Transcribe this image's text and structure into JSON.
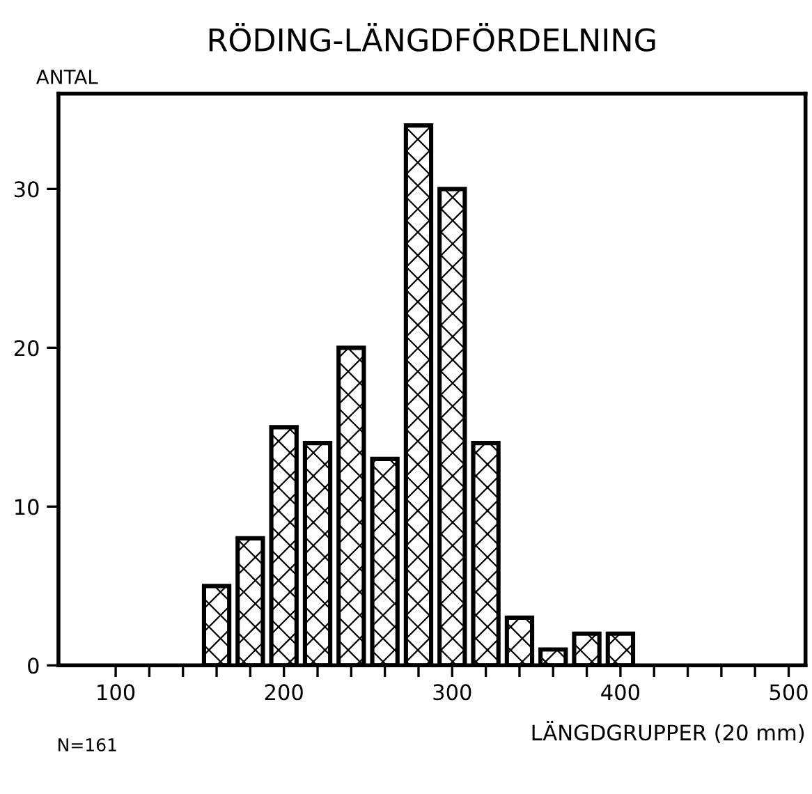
{
  "chart_data": {
    "type": "bar",
    "title": "RÖDING-LÄNGDFÖRDELNING",
    "ylabel": "ANTAL",
    "xlabel": "LÄNGDGRUPPER (20 mm)",
    "x": [
      160,
      180,
      200,
      220,
      240,
      260,
      280,
      300,
      320,
      340,
      360,
      380,
      400
    ],
    "values": [
      5,
      8,
      15,
      14,
      20,
      13,
      34,
      30,
      14,
      3,
      1,
      2,
      2
    ],
    "color": "#000000",
    "xlim": [
      66,
      510
    ],
    "ylim": [
      0,
      36
    ],
    "xticks": [
      100,
      {
        "value": 120,
        "label": null
      },
      {
        "value": 140,
        "label": null
      },
      {
        "value": 160,
        "label": null
      },
      {
        "value": 180,
        "label": null
      },
      200,
      {
        "value": 220,
        "label": null
      },
      {
        "value": 240,
        "label": null
      },
      {
        "value": 260,
        "label": null
      },
      {
        "value": 280,
        "label": null
      },
      300,
      {
        "value": 320,
        "label": null
      },
      {
        "value": 340,
        "label": null
      },
      {
        "value": 360,
        "label": null
      },
      {
        "value": 380,
        "label": null
      },
      400,
      {
        "value": 420,
        "label": null
      },
      {
        "value": 440,
        "label": null
      },
      {
        "value": 460,
        "label": null
      },
      {
        "value": 480,
        "label": null
      },
      500
    ],
    "yticks": [
      0,
      10,
      20,
      30
    ],
    "annotations": [
      "N=161"
    ],
    "grid": false,
    "legend": false
  }
}
